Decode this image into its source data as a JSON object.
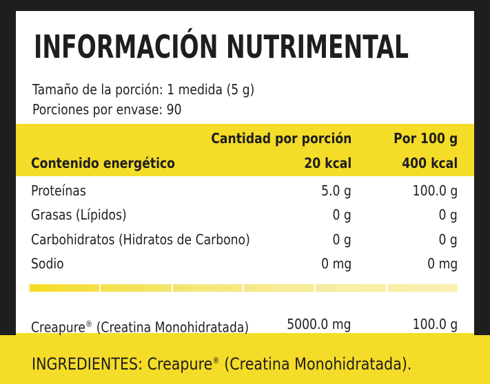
{
  "title": "INFORMACIÓN NUTRIMENTAL",
  "serving_size": "Tamaño de la porción: 1 medida (5 g)",
  "servings_per_container": "Porciones por envase: 90",
  "header": {
    "per_serving": "Cantidad por porción",
    "per_100g": "Por 100 g",
    "energy_label": "Contenido energético",
    "energy_serving": "20 kcal",
    "energy_100g": "400 kcal"
  },
  "rows": [
    {
      "label": "Proteínas",
      "serving": "5.0 g",
      "per100": "100.0 g"
    },
    {
      "label": "Grasas (Lípidos)",
      "serving": "0 g",
      "per100": "0 g"
    },
    {
      "label": "Carbohidratos (Hidratos de Carbono)",
      "serving": "0 g",
      "per100": "0 g"
    },
    {
      "label": "Sodio",
      "serving": "0 mg",
      "per100": "0 mg"
    }
  ],
  "creapure": {
    "label_pre": "Creapure",
    "label_mark": "®",
    "label_post": " (Creatina Monohidratada)",
    "serving": "5000.0 mg",
    "per100": "100.0 g"
  },
  "ingredients": {
    "prefix": "INGREDIENTES: Creapure",
    "mark": "®",
    "suffix": " (Creatina Monohidratada)."
  }
}
